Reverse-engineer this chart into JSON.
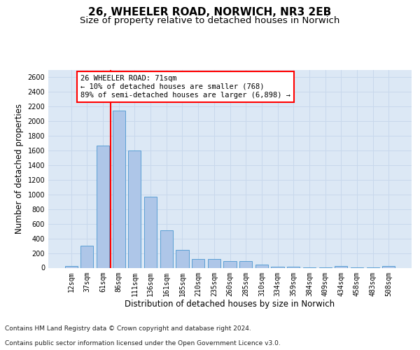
{
  "title_line1": "26, WHEELER ROAD, NORWICH, NR3 2EB",
  "title_line2": "Size of property relative to detached houses in Norwich",
  "xlabel": "Distribution of detached houses by size in Norwich",
  "ylabel": "Number of detached properties",
  "categories": [
    "12sqm",
    "37sqm",
    "61sqm",
    "86sqm",
    "111sqm",
    "136sqm",
    "161sqm",
    "185sqm",
    "210sqm",
    "235sqm",
    "260sqm",
    "285sqm",
    "310sqm",
    "334sqm",
    "359sqm",
    "384sqm",
    "409sqm",
    "434sqm",
    "458sqm",
    "483sqm",
    "508sqm"
  ],
  "values": [
    20,
    300,
    1670,
    2150,
    1600,
    970,
    510,
    245,
    120,
    120,
    95,
    95,
    42,
    15,
    12,
    8,
    5,
    20,
    5,
    5,
    20
  ],
  "bar_color": "#aec6e8",
  "bar_edge_color": "#5a9fd4",
  "red_line_x": 2.5,
  "annotation_text": "26 WHEELER ROAD: 71sqm\n← 10% of detached houses are smaller (768)\n89% of semi-detached houses are larger (6,898) →",
  "annotation_box_facecolor": "white",
  "annotation_box_edgecolor": "red",
  "red_line_color": "red",
  "ylim": [
    0,
    2700
  ],
  "yticks": [
    0,
    200,
    400,
    600,
    800,
    1000,
    1200,
    1400,
    1600,
    1800,
    2000,
    2200,
    2400,
    2600
  ],
  "grid_color": "#c8d8ec",
  "plot_bg_color": "#dce8f5",
  "footer_line1": "Contains HM Land Registry data © Crown copyright and database right 2024.",
  "footer_line2": "Contains public sector information licensed under the Open Government Licence v3.0.",
  "title_fontsize": 11,
  "subtitle_fontsize": 9.5,
  "axis_label_fontsize": 8.5,
  "tick_fontsize": 7,
  "annotation_fontsize": 7.5,
  "footer_fontsize": 6.5
}
